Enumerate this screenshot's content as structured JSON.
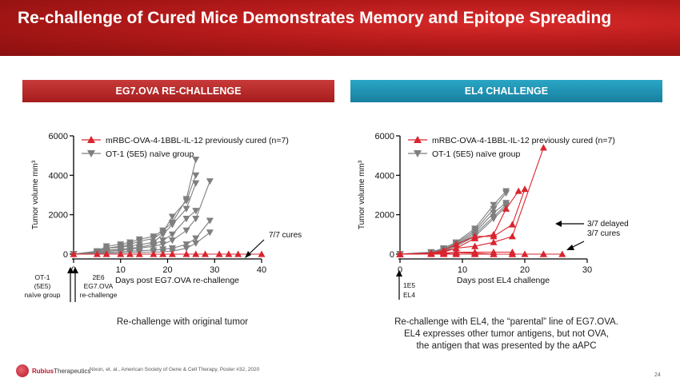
{
  "slide": {
    "title": "Re-challenge of Cured Mice Demonstrates Memory and Epitope Spreading",
    "page_number": "24",
    "logo_text_1": "Rubius",
    "logo_text_2": "Therapeutics",
    "citation": "Nixon, et. al., American Society of Gene & Cell Therapy, Poster #32, 2020"
  },
  "left_panel": {
    "header": "EG7.OVA RE-CHALLENGE",
    "caption": "Re-challenge with original tumor",
    "annotations": {
      "cures": "7/7 cures",
      "ot1_1": "OT-1",
      "ot1_2": "(5E5)",
      "ot1_3": "naïve group",
      "eg7_1": "2E6",
      "eg7_2": "EG7.OVA",
      "eg7_3": "re-challenge"
    }
  },
  "right_panel": {
    "header": "EL4 CHALLENGE",
    "caption_1": "Re-challenge with EL4, the “parental” line of EG7.OVA.",
    "caption_2": "EL4 expresses other tumor antigens, but not OVA,",
    "caption_3": "the antigen that was presented by the aAPC",
    "annotations": {
      "delayed": "3/7 delayed",
      "cures": "3/7 cures",
      "dose_1": "1E5",
      "dose_2": "EL4"
    }
  },
  "colors": {
    "treated": "#d9252f",
    "naive": "#7f7f7f",
    "left_header": "#b5232a",
    "right_header": "#1e94b5"
  },
  "chart_data": [
    {
      "type": "line",
      "xlabel": "Days post EG7.OVA re-challenge",
      "ylabel": "Tumor volume mm³",
      "xlim": [
        0,
        40
      ],
      "ylim": [
        0,
        6000
      ],
      "xticks": [
        "0",
        "10",
        "20",
        "30",
        "40"
      ],
      "yticks": [
        "0",
        "2000",
        "4000",
        "6000"
      ],
      "legend": "top-left",
      "series": [
        {
          "name": "mRBC-OVA-4-1BBL-IL-12 previously cured (n=7)",
          "marker": "triangle-up",
          "color": "#d9252f",
          "lines": [
            [
              [
                0,
                0
              ],
              [
                5,
                0
              ],
              [
                7,
                0
              ],
              [
                10,
                0
              ],
              [
                12,
                0
              ],
              [
                14,
                0
              ],
              [
                17,
                0
              ],
              [
                19,
                0
              ],
              [
                21,
                0
              ],
              [
                24,
                0
              ],
              [
                26,
                0
              ],
              [
                28,
                0
              ],
              [
                31,
                0
              ],
              [
                33,
                0
              ],
              [
                35,
                0
              ],
              [
                40,
                0
              ]
            ]
          ]
        },
        {
          "name": "OT-1 (5E5) naïve group",
          "marker": "triangle-down",
          "color": "#7f7f7f",
          "lines": [
            [
              [
                0,
                0
              ],
              [
                5,
                150
              ],
              [
                7,
                400
              ],
              [
                10,
                500
              ],
              [
                12,
                600
              ],
              [
                14,
                750
              ],
              [
                17,
                900
              ],
              [
                19,
                1200
              ],
              [
                21,
                1600
              ],
              [
                24,
                2800
              ],
              [
                26,
                4800
              ]
            ],
            [
              [
                0,
                0
              ],
              [
                5,
                150
              ],
              [
                7,
                300
              ],
              [
                10,
                400
              ],
              [
                12,
                500
              ],
              [
                14,
                650
              ],
              [
                17,
                800
              ],
              [
                19,
                1100
              ],
              [
                21,
                1900
              ],
              [
                24,
                2700
              ],
              [
                26,
                4000
              ]
            ],
            [
              [
                0,
                0
              ],
              [
                5,
                100
              ],
              [
                7,
                300
              ],
              [
                10,
                350
              ],
              [
                12,
                420
              ],
              [
                14,
                480
              ],
              [
                17,
                600
              ],
              [
                19,
                1000
              ],
              [
                21,
                1500
              ],
              [
                24,
                2300
              ],
              [
                26,
                3600
              ]
            ],
            [
              [
                0,
                0
              ],
              [
                5,
                100
              ],
              [
                7,
                200
              ],
              [
                10,
                250
              ],
              [
                12,
                300
              ],
              [
                14,
                350
              ],
              [
                17,
                500
              ],
              [
                19,
                700
              ],
              [
                21,
                1000
              ],
              [
                24,
                1800
              ],
              [
                26,
                2200
              ]
            ],
            [
              [
                0,
                0
              ],
              [
                5,
                80
              ],
              [
                7,
                150
              ],
              [
                10,
                200
              ],
              [
                12,
                250
              ],
              [
                14,
                300
              ],
              [
                17,
                400
              ],
              [
                19,
                500
              ],
              [
                21,
                700
              ],
              [
                24,
                1200
              ],
              [
                26,
                1800
              ],
              [
                29,
                3700
              ]
            ],
            [
              [
                0,
                0
              ],
              [
                5,
                50
              ],
              [
                7,
                100
              ],
              [
                10,
                120
              ],
              [
                12,
                150
              ],
              [
                14,
                180
              ],
              [
                17,
                200
              ],
              [
                19,
                250
              ],
              [
                21,
                300
              ],
              [
                24,
                500
              ],
              [
                26,
                800
              ],
              [
                29,
                1700
              ]
            ],
            [
              [
                0,
                0
              ],
              [
                5,
                30
              ],
              [
                7,
                50
              ],
              [
                10,
                60
              ],
              [
                12,
                80
              ],
              [
                14,
                90
              ],
              [
                17,
                100
              ],
              [
                19,
                120
              ],
              [
                21,
                150
              ],
              [
                24,
                300
              ],
              [
                26,
                550
              ],
              [
                29,
                1100
              ]
            ]
          ]
        }
      ]
    },
    {
      "type": "line",
      "xlabel": "Days post EL4 challenge",
      "ylabel": "Tumor volume mm³",
      "xlim": [
        0,
        30
      ],
      "ylim": [
        0,
        6000
      ],
      "xticks": [
        "0",
        "10",
        "20",
        "30"
      ],
      "yticks": [
        "0",
        "2000",
        "4000",
        "6000"
      ],
      "legend": "top-left",
      "series": [
        {
          "name": "mRBC-OVA-4-1BBL-IL-12 previously cured (n=7)",
          "marker": "triangle-up",
          "color": "#d9252f",
          "lines": [
            [
              [
                0,
                0
              ],
              [
                5,
                50
              ],
              [
                7,
                150
              ],
              [
                9,
                300
              ],
              [
                12,
                800
              ],
              [
                15,
                1000
              ],
              [
                17,
                2300
              ],
              [
                19,
                3200
              ]
            ],
            [
              [
                0,
                0
              ],
              [
                5,
                50
              ],
              [
                7,
                200
              ],
              [
                9,
                500
              ],
              [
                12,
                900
              ],
              [
                15,
                900
              ],
              [
                18,
                1500
              ],
              [
                20,
                3300
              ]
            ],
            [
              [
                0,
                0
              ],
              [
                5,
                30
              ],
              [
                7,
                100
              ],
              [
                9,
                300
              ],
              [
                12,
                400
              ],
              [
                15,
                600
              ],
              [
                18,
                900
              ],
              [
                23,
                5400
              ]
            ],
            [
              [
                0,
                0
              ],
              [
                5,
                20
              ],
              [
                7,
                50
              ],
              [
                9,
                100
              ],
              [
                12,
                100
              ],
              [
                15,
                100
              ],
              [
                18,
                100
              ]
            ],
            [
              [
                0,
                0
              ],
              [
                5,
                20
              ],
              [
                7,
                50
              ],
              [
                9,
                80
              ],
              [
                12,
                50
              ],
              [
                15,
                0
              ],
              [
                18,
                0
              ],
              [
                23,
                0
              ]
            ],
            [
              [
                0,
                0
              ],
              [
                5,
                10
              ],
              [
                7,
                30
              ],
              [
                9,
                0
              ],
              [
                12,
                0
              ],
              [
                15,
                0
              ],
              [
                18,
                0
              ],
              [
                20,
                0
              ],
              [
                26,
                0
              ]
            ],
            [
              [
                0,
                0
              ],
              [
                5,
                0
              ],
              [
                7,
                0
              ],
              [
                9,
                0
              ],
              [
                12,
                0
              ],
              [
                15,
                0
              ],
              [
                18,
                0
              ],
              [
                23,
                0
              ]
            ]
          ]
        },
        {
          "name": "OT-1 (5E5) naïve group",
          "marker": "triangle-down",
          "color": "#7f7f7f",
          "lines": [
            [
              [
                0,
                0
              ],
              [
                5,
                100
              ],
              [
                7,
                300
              ],
              [
                9,
                600
              ],
              [
                12,
                1300
              ],
              [
                15,
                2500
              ],
              [
                17,
                3200
              ]
            ],
            [
              [
                0,
                0
              ],
              [
                5,
                100
              ],
              [
                7,
                300
              ],
              [
                9,
                550
              ],
              [
                12,
                1200
              ],
              [
                15,
                2300
              ],
              [
                17,
                3100
              ]
            ],
            [
              [
                0,
                0
              ],
              [
                5,
                80
              ],
              [
                7,
                250
              ],
              [
                9,
                500
              ],
              [
                12,
                1100
              ],
              [
                15,
                2100
              ],
              [
                17,
                2600
              ]
            ],
            [
              [
                0,
                0
              ],
              [
                5,
                60
              ],
              [
                7,
                200
              ],
              [
                9,
                450
              ],
              [
                12,
                1000
              ],
              [
                15,
                1900
              ],
              [
                17,
                2500
              ]
            ],
            [
              [
                0,
                0
              ],
              [
                5,
                50
              ],
              [
                7,
                150
              ],
              [
                9,
                400
              ],
              [
                12,
                900
              ],
              [
                15,
                1800
              ],
              [
                17,
                2400
              ]
            ]
          ]
        }
      ]
    }
  ]
}
